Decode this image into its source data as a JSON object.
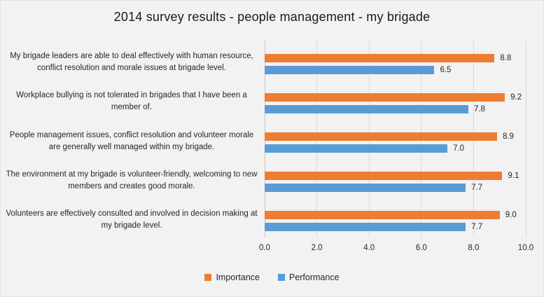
{
  "window": {
    "background_color": "#F2F2F2"
  },
  "chart_data": {
    "type": "bar",
    "orientation": "horizontal",
    "title": "2014 survey results - people management - my brigade",
    "categories": [
      "My brigade leaders are able to deal effectively with human resource, conflict resolution and morale issues at brigade level.",
      "Workplace bullying is not tolerated in brigades that I have been a member of.",
      "People management issues, conflict resolution and volunteer morale are generally well managed within my brigade.",
      "The environment at my brigade is volunteer-friendly, welcoming to new members and creates good morale.",
      "Volunteers are effectively consulted and involved in decision making at my brigade level."
    ],
    "series": [
      {
        "name": "Importance",
        "color": "#ED7D31",
        "values": [
          8.8,
          9.2,
          8.9,
          9.1,
          9.0
        ],
        "value_labels": [
          "8.8",
          "9.2",
          "8.9",
          "9.1",
          "9.0"
        ]
      },
      {
        "name": "Performance",
        "color": "#5B9BD5",
        "values": [
          6.5,
          7.8,
          7.0,
          7.7,
          7.7
        ],
        "value_labels": [
          "6.5",
          "7.8",
          "7.0",
          "7.7",
          "7.7"
        ]
      }
    ],
    "xlim": [
      0,
      10
    ],
    "x_ticks": [
      "0.0",
      "2.0",
      "4.0",
      "6.0",
      "8.0",
      "10.0"
    ],
    "grid": true,
    "gridline_color": "#D9D9D9",
    "label_color": "#262626",
    "legend_position": "bottom"
  }
}
